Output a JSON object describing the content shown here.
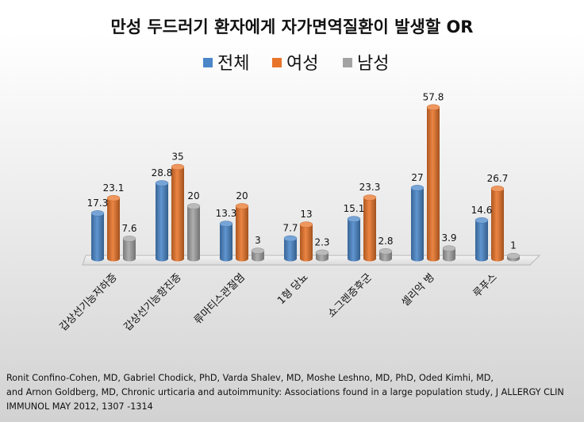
{
  "chart_data": {
    "type": "bar",
    "title": "만성 두드러기 환자에게 자가면역질환이 발생할  OR",
    "categories": [
      "갑상선기능저하증",
      "갑상선기능항진증",
      "류마티스관절염",
      "1형 당뇨",
      "쇼그렌증후군",
      "셀리악 병",
      "루푸스"
    ],
    "series": [
      {
        "name": "전체",
        "color": "#4a86c8",
        "values": [
          17.3,
          28.8,
          13.3,
          7.7,
          15.1,
          27,
          14.6
        ]
      },
      {
        "name": "여성",
        "color": "#e8742a",
        "values": [
          23.1,
          35,
          20,
          13,
          23.3,
          57.8,
          26.7
        ]
      },
      {
        "name": "남성",
        "color": "#a3a3a3",
        "values": [
          7.6,
          20,
          3,
          2.3,
          2.8,
          3.9,
          1
        ]
      }
    ],
    "ylim": [
      0,
      60
    ],
    "legend_position": "top",
    "grid": false
  },
  "citation": [
    "Ronit Confino-Cohen,  MD, Gabriel Chodick, PhD, Varda Shalev, MD, Moshe Leshno, MD, PhD, Oded Kimhi, MD,",
    "and Arnon Goldberg, MD, Chronic urticaria and autoimmunity: Associations  found  in a large population  study, J ALLERGY CLIN",
    "IMMUNOL MAY 2012, 1307 -1314"
  ]
}
